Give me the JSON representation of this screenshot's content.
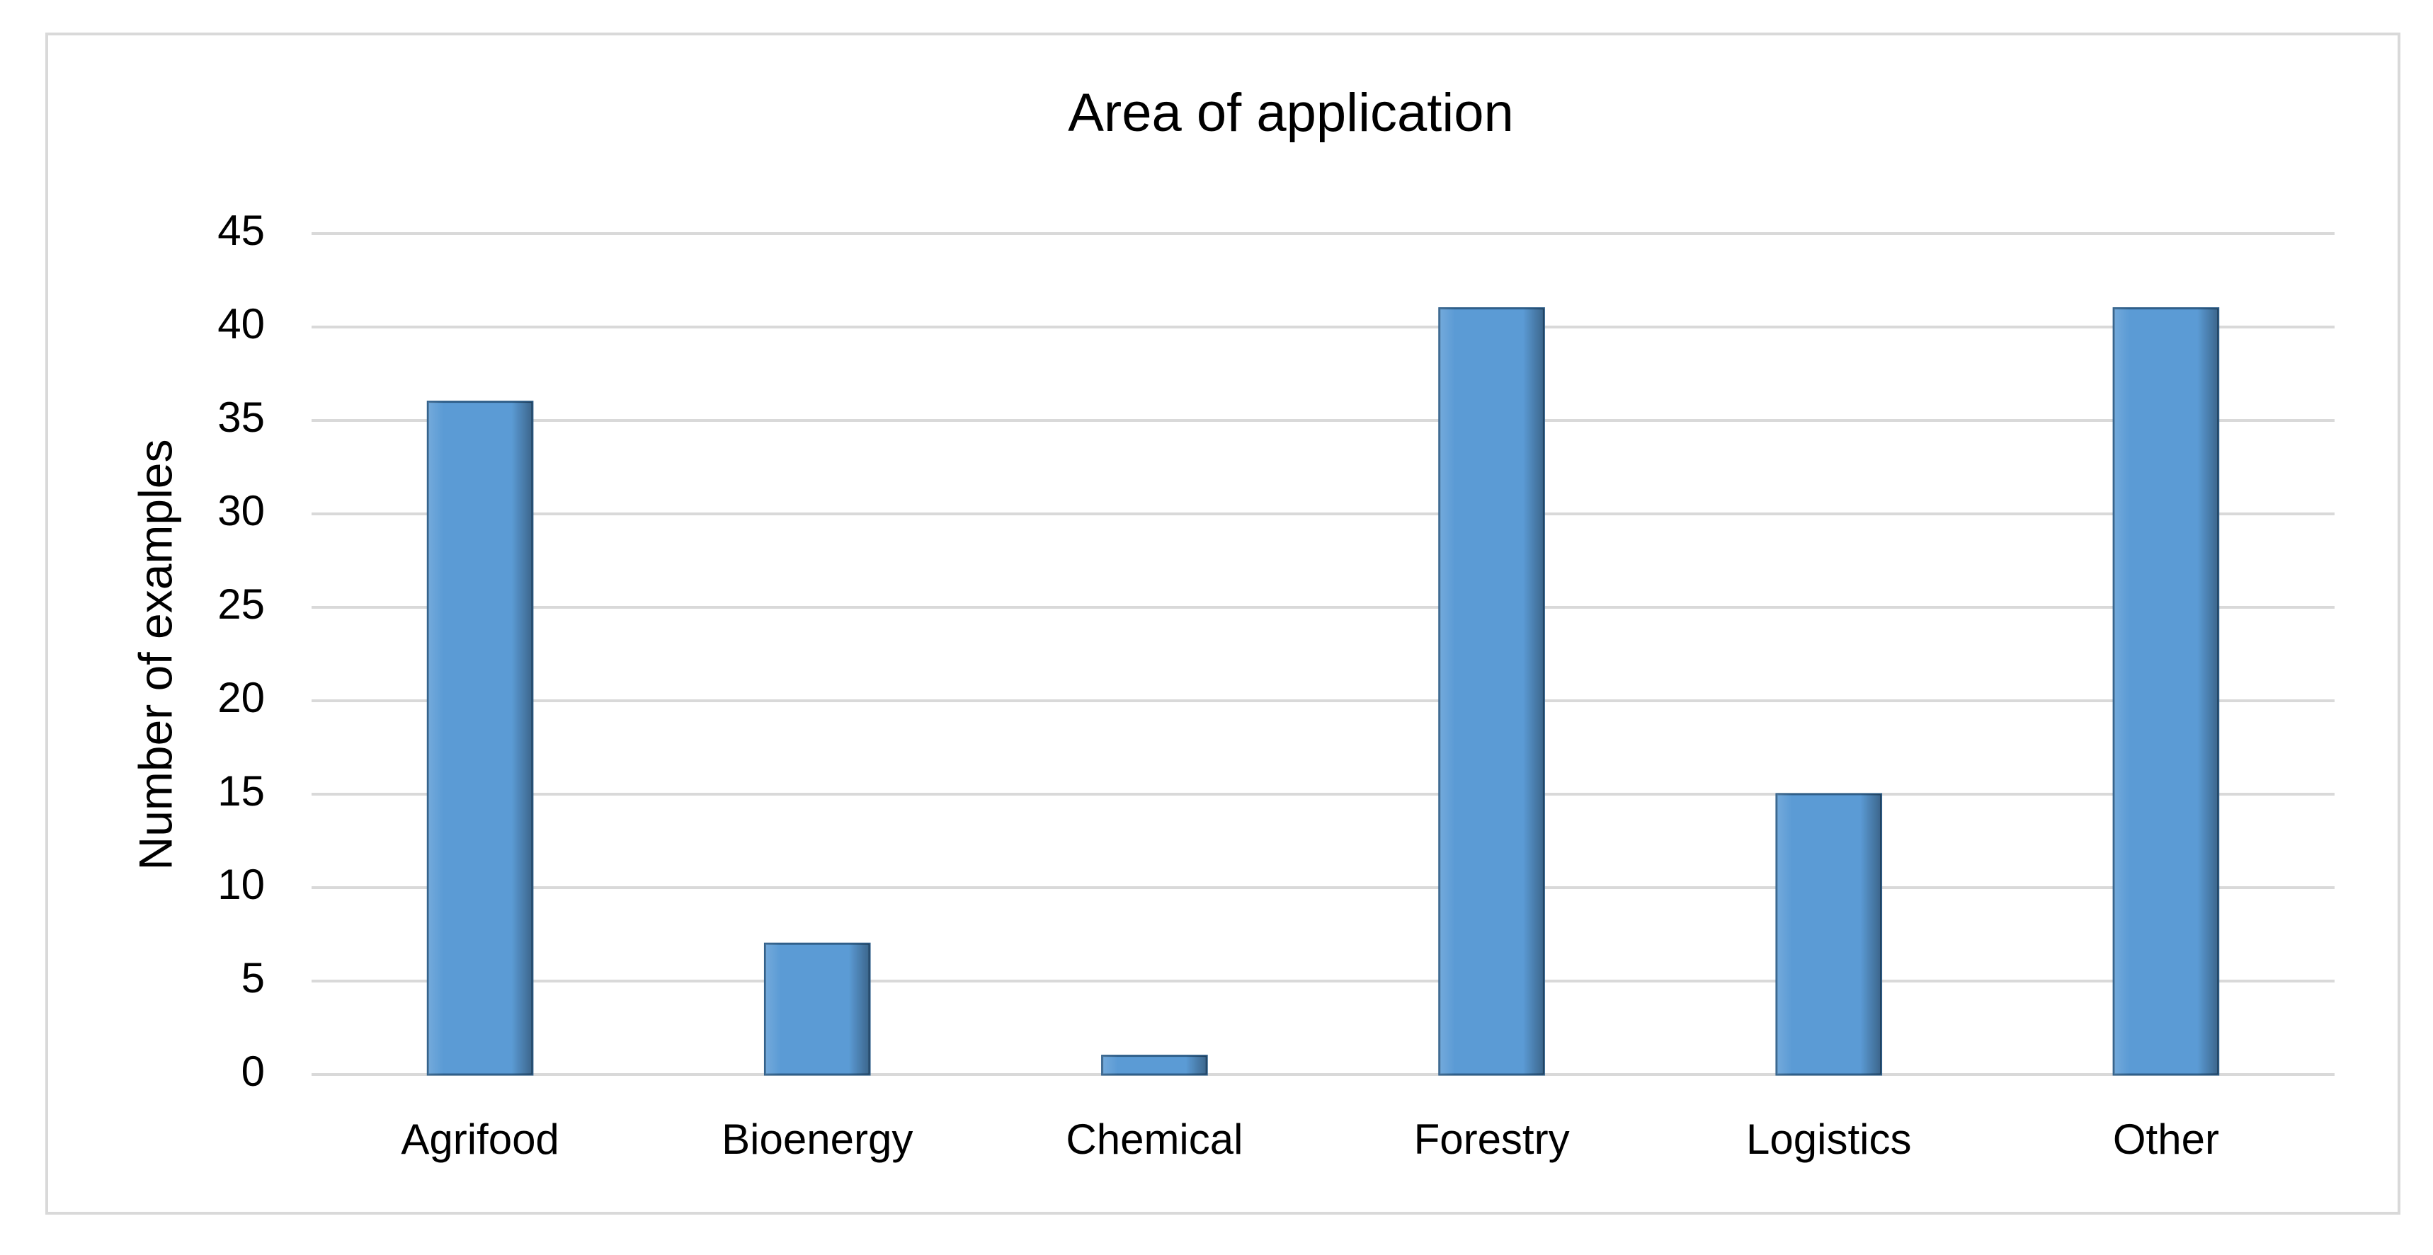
{
  "chart_data": {
    "type": "bar",
    "title": "Area of application",
    "y_label": "Number of examples",
    "categories": [
      "Agrifood",
      "Bioenergy",
      "Chemical",
      "Forestry",
      "Logistics",
      "Other"
    ],
    "values": [
      36,
      7,
      1,
      41,
      15,
      41
    ],
    "color": "#5b9bd5",
    "ylim": [
      0,
      45
    ],
    "yticks": [
      0,
      5,
      10,
      15,
      20,
      25,
      30,
      35,
      40,
      45
    ],
    "grid": true
  }
}
